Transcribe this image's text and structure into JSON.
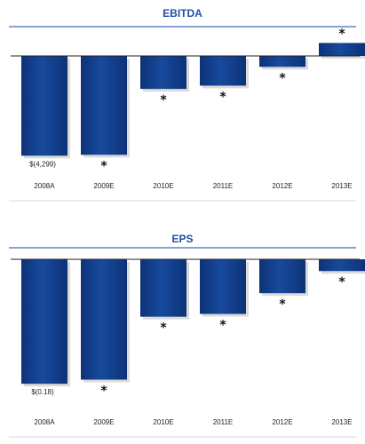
{
  "chart_data": [
    {
      "type": "bar",
      "title": "EBITDA",
      "categories": [
        "2008A",
        "2009E",
        "2010E",
        "2011E",
        "2012E",
        "2013E"
      ],
      "values": [
        -4299,
        -4260,
        -1420,
        -1280,
        -470,
        560
      ],
      "data_labels": [
        "$(4,299)",
        "*",
        "*",
        "*",
        "*",
        "*"
      ],
      "ylim": [
        -4400,
        700
      ],
      "xlabel": "",
      "ylabel": "",
      "grid": false,
      "colors": {
        "bar": "#174a9c",
        "bar_dark": "#0d3278",
        "title": "#1f4fa0",
        "rule": "#5f86c4"
      }
    },
    {
      "type": "bar",
      "title": "EPS",
      "categories": [
        "2008A",
        "2009E",
        "2010E",
        "2011E",
        "2012E",
        "2013E"
      ],
      "values": [
        -0.18,
        -0.174,
        -0.083,
        -0.079,
        -0.049,
        -0.017
      ],
      "data_labels": [
        "$(0.18)",
        "*",
        "*",
        "*",
        "*",
        "*"
      ],
      "ylim": [
        -0.19,
        0
      ],
      "xlabel": "",
      "ylabel": "",
      "grid": false,
      "colors": {
        "bar": "#174a9c",
        "bar_dark": "#0d3278",
        "title": "#1f4fa0",
        "rule": "#5f86c4"
      }
    }
  ]
}
